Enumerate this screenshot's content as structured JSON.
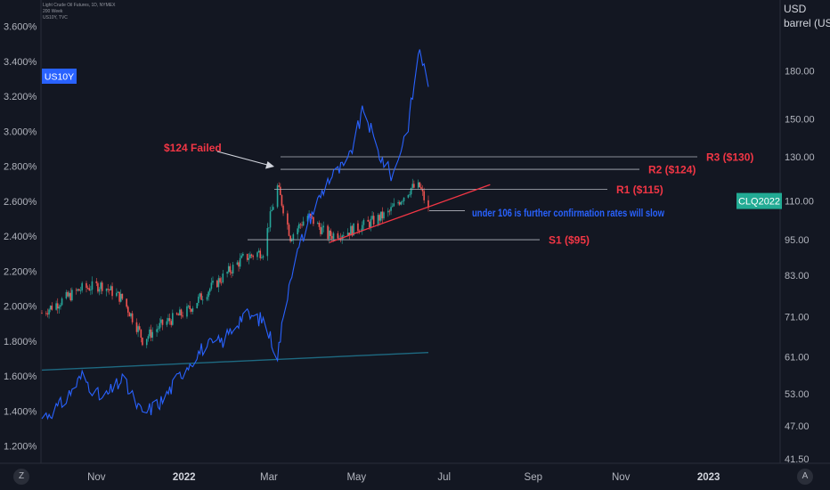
{
  "header": {
    "line1": "Light Crude Oil Futures, 1D, NYMEX",
    "line2": "200 Week",
    "line3": "US10Y, TVC"
  },
  "corner_buttons": {
    "left": "Z",
    "right": "A"
  },
  "chart_data": {
    "type": "line",
    "symbol_oil": "CLQ2022",
    "symbol_yield": "US10Y",
    "left_axis": {
      "ticks": [
        "3.600%",
        "3.400%",
        "3.200%",
        "3.000%",
        "2.800%",
        "2.600%",
        "2.400%",
        "2.200%",
        "2.000%",
        "1.800%",
        "1.600%",
        "1.400%",
        "1.200%"
      ],
      "ylim": [
        1.1,
        3.7
      ]
    },
    "right_axis": {
      "title": [
        "USD",
        "barrel (US)"
      ],
      "ticks": [
        "180.00",
        "150.00",
        "130.00",
        "110.00",
        "95.00",
        "83.00",
        "71.00",
        "61.00",
        "53.00",
        "47.00",
        "41.50"
      ],
      "scale": "log"
    },
    "x_axis": {
      "ticks": [
        "Nov",
        "2022",
        "Mar",
        "May",
        "Jul",
        "Sep",
        "Nov",
        "2023"
      ]
    },
    "price_label": "CLQ2022",
    "price_value": 110,
    "colors": {
      "bg": "#131722",
      "up": "#26a69a",
      "down": "#ef5350",
      "yield": "#2962ff",
      "ma": "#1e6a82",
      "level": "#b2b5be",
      "annot_red": "#f23645",
      "annot_blue": "#2962ff",
      "badge": "#22ab94"
    },
    "series": [
      {
        "name": "Light Crude Oil Futures",
        "type": "candlestick",
        "x": [
          "2021-09-24",
          "2021-10-08",
          "2021-10-22",
          "2021-11-05",
          "2021-11-19",
          "2021-12-01",
          "2021-12-03",
          "2021-12-17",
          "2022-01-03",
          "2022-01-14",
          "2022-01-28",
          "2022-02-11",
          "2022-02-25",
          "2022-03-07",
          "2022-03-16",
          "2022-03-28",
          "2022-04-11",
          "2022-04-25",
          "2022-05-09",
          "2022-05-23",
          "2022-06-08",
          "2022-06-14",
          "2022-06-20"
        ],
        "close": [
          72.0,
          75.5,
          79.0,
          80.0,
          76.0,
          67.0,
          65.0,
          69.0,
          72.5,
          77.0,
          82.5,
          88.5,
          91.0,
          116.0,
          96.0,
          104.0,
          96.5,
          98.0,
          101.0,
          105.0,
          115.5,
          116.0,
          106.0
        ]
      },
      {
        "name": "US10Y",
        "x": [
          "2021-09-24",
          "2021-10-08",
          "2021-10-22",
          "2021-11-05",
          "2021-11-19",
          "2021-12-03",
          "2021-12-17",
          "2022-01-03",
          "2022-01-14",
          "2022-01-28",
          "2022-02-11",
          "2022-02-25",
          "2022-03-07",
          "2022-03-16",
          "2022-03-28",
          "2022-04-11",
          "2022-04-25",
          "2022-05-06",
          "2022-05-16",
          "2022-05-26",
          "2022-06-06",
          "2022-06-14",
          "2022-06-20"
        ],
        "values": [
          1.36,
          1.44,
          1.6,
          1.46,
          1.58,
          1.38,
          1.46,
          1.66,
          1.76,
          1.8,
          1.95,
          1.92,
          1.72,
          2.18,
          2.48,
          2.72,
          2.82,
          3.13,
          2.88,
          2.74,
          3.04,
          3.48,
          3.24
        ]
      },
      {
        "name": "200 Week",
        "x": [
          "2021-09-24",
          "2022-06-20"
        ],
        "values": [
          58.0,
          62.0
        ]
      }
    ],
    "levels": [
      {
        "label": "R3 ($130)",
        "value": 130
      },
      {
        "label": "R2 ($124)",
        "value": 124
      },
      {
        "label": "R1 ($115)",
        "value": 115
      },
      {
        "label": "S1 ($95)",
        "value": 95
      },
      {
        "label": "",
        "value": 106
      }
    ],
    "trendline": [
      {
        "x": "2022-04-12",
        "y": 94
      },
      {
        "x": "2022-08-02",
        "y": 117
      }
    ],
    "annotations": [
      {
        "text": "$124 Failed",
        "color": "red"
      },
      {
        "text": "under 106 is further confirmation rates will slow",
        "color": "blue"
      }
    ]
  }
}
